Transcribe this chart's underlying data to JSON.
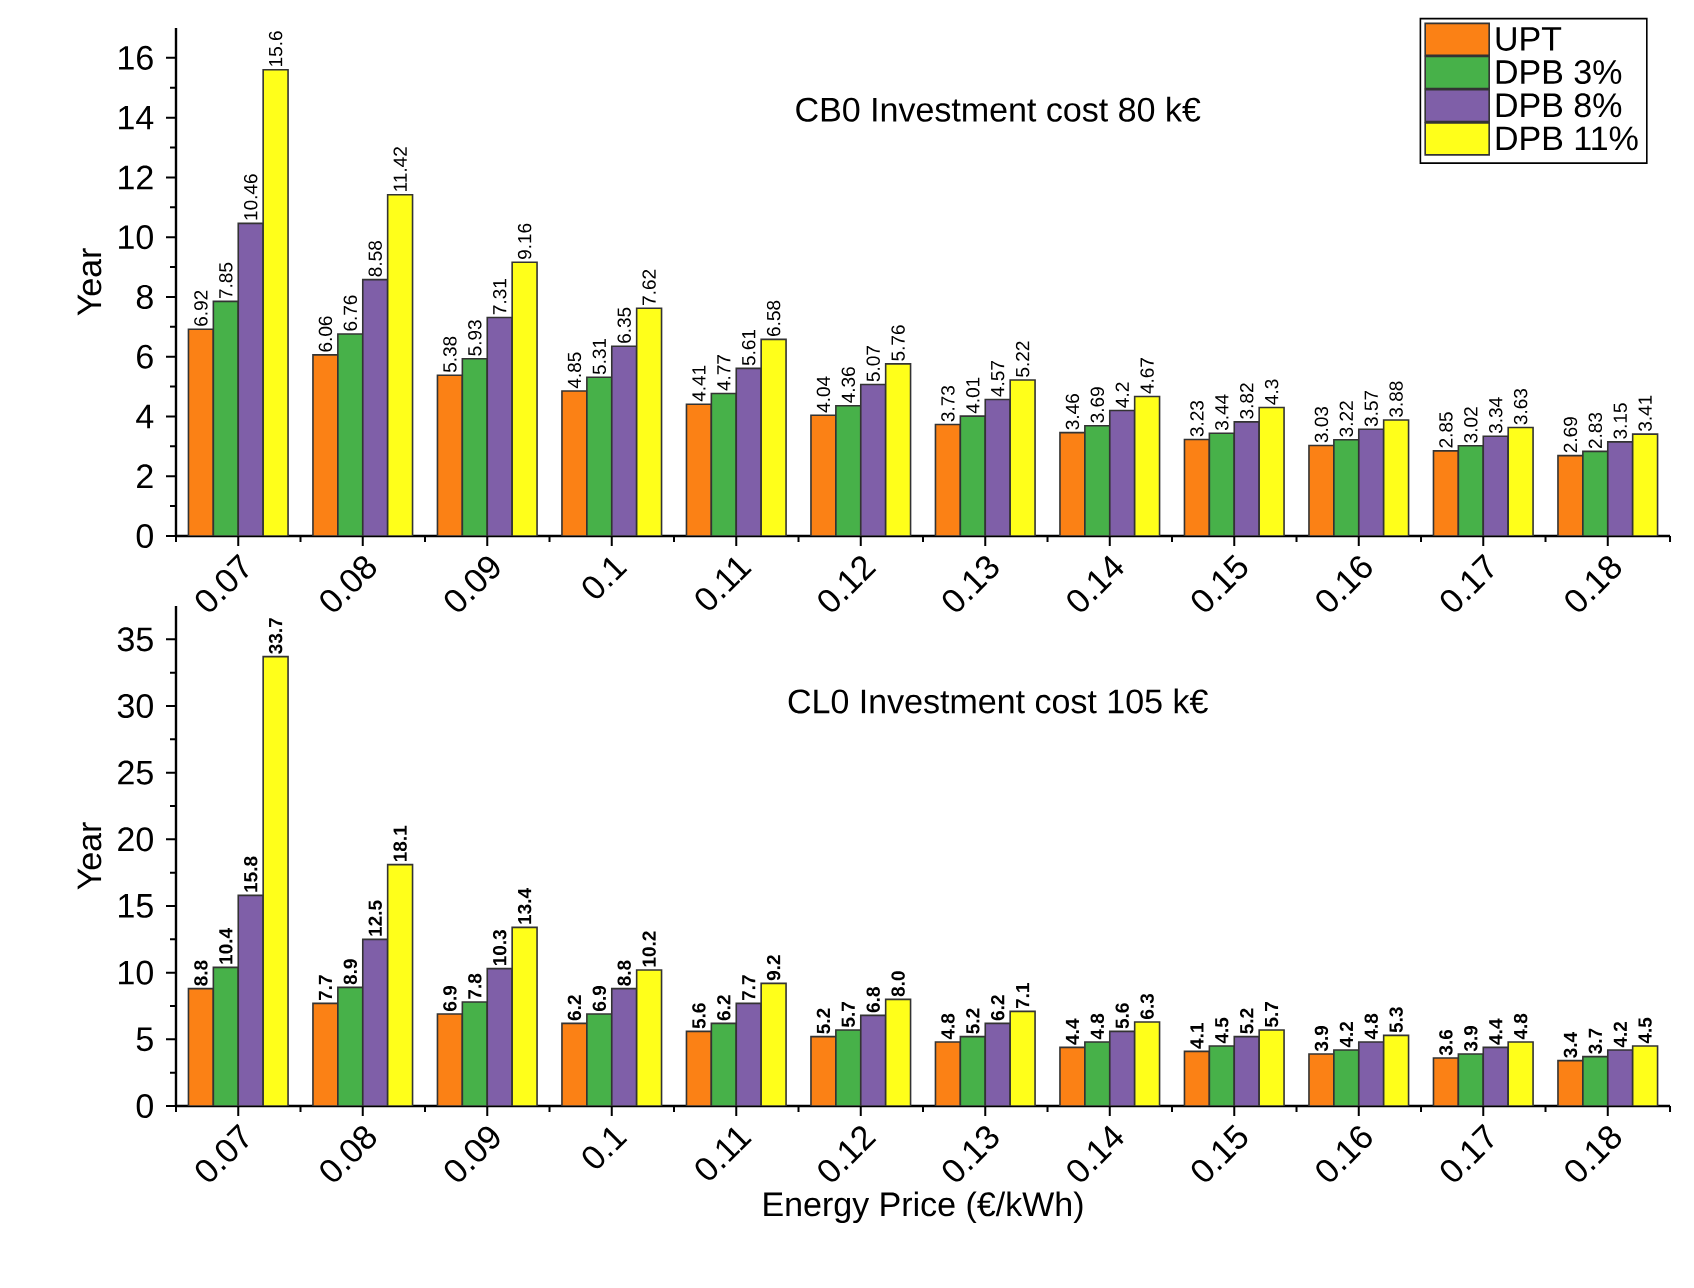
{
  "chart_data": [
    {
      "type": "bar",
      "title": "CB0 Investment cost 80 k€",
      "ylabel": "Year",
      "categories": [
        "0.07",
        "0.08",
        "0.09",
        "0.1",
        "0.11",
        "0.12",
        "0.13",
        "0.14",
        "0.15",
        "0.16",
        "0.17",
        "0.18"
      ],
      "series": [
        {
          "name": "UPT",
          "color": "#fb8115",
          "values": [
            6.92,
            6.06,
            5.38,
            4.85,
            4.41,
            4.04,
            3.73,
            3.46,
            3.23,
            3.03,
            2.85,
            2.69
          ]
        },
        {
          "name": "DPB 3%",
          "color": "#47b149",
          "values": [
            7.85,
            6.76,
            5.93,
            5.31,
            4.77,
            4.36,
            4.01,
            3.69,
            3.44,
            3.22,
            3.02,
            2.83
          ]
        },
        {
          "name": "DPB 8%",
          "color": "#7f5fa8",
          "values": [
            10.46,
            8.58,
            7.31,
            6.35,
            5.61,
            5.07,
            4.57,
            4.2,
            3.82,
            3.57,
            3.34,
            3.15
          ]
        },
        {
          "name": "DPB 11%",
          "color": "#ffff1a",
          "values": [
            15.6,
            11.42,
            9.16,
            7.62,
            6.58,
            5.76,
            5.22,
            4.67,
            4.3,
            3.88,
            3.63,
            3.41
          ]
        }
      ],
      "ylim": [
        0,
        17
      ],
      "yticks": [
        0,
        2,
        4,
        6,
        8,
        10,
        12,
        14,
        16
      ],
      "data_labels": true,
      "legend": "top right"
    },
    {
      "type": "bar",
      "title": "CL0 Investment cost 105 k€",
      "ylabel": "Year",
      "xlabel": "Energy Price (€/kWh)",
      "categories": [
        "0.07",
        "0.08",
        "0.09",
        "0.1",
        "0.11",
        "0.12",
        "0.13",
        "0.14",
        "0.15",
        "0.16",
        "0.17",
        "0.18"
      ],
      "series": [
        {
          "color": "#fb8115",
          "values": [
            8.8,
            7.7,
            6.9,
            6.2,
            5.6,
            5.2,
            4.8,
            4.4,
            4.1,
            3.9,
            3.6,
            3.4
          ],
          "value_labels": [
            "8.8",
            "7.7",
            "6.9",
            "6.2",
            "5.6",
            "5.2",
            "4.8",
            "4.4",
            "4.1",
            "3.9",
            "3.6",
            "3.4"
          ]
        },
        {
          "color": "#47b149",
          "values": [
            10.4,
            8.9,
            7.8,
            6.9,
            6.2,
            5.7,
            5.2,
            4.8,
            4.5,
            4.2,
            3.9,
            3.7
          ],
          "value_labels": [
            "10.4",
            "8.9",
            "7.8",
            "6.9",
            "6.2",
            "5.7",
            "5.2",
            "4.8",
            "4.5",
            "4.2",
            "3.9",
            "3.7"
          ]
        },
        {
          "color": "#7f5fa8",
          "values": [
            15.8,
            12.5,
            10.3,
            8.8,
            7.7,
            6.8,
            6.2,
            5.6,
            5.2,
            4.8,
            4.4,
            4.2
          ],
          "value_labels": [
            "15.8",
            "12.5",
            "10.3",
            "8.8",
            "7.7",
            "6.8",
            "6.2",
            "5.6",
            "5.2",
            "4.8",
            "4.4",
            "4.2"
          ]
        },
        {
          "color": "#ffff1a",
          "values": [
            33.7,
            18.1,
            13.4,
            10.2,
            9.2,
            8.0,
            7.1,
            6.3,
            5.7,
            5.3,
            4.8,
            4.5
          ],
          "value_labels": [
            "33.7",
            "18.1",
            "13.4",
            "10.2",
            "9.2",
            "8.0",
            "7.1",
            "6.3",
            "5.7",
            "5.3",
            "4.8",
            "4.5"
          ]
        }
      ],
      "ylim": [
        0,
        37.5
      ],
      "yticks": [
        0,
        5,
        10,
        15,
        20,
        25,
        30,
        35
      ],
      "legend": false
    }
  ]
}
